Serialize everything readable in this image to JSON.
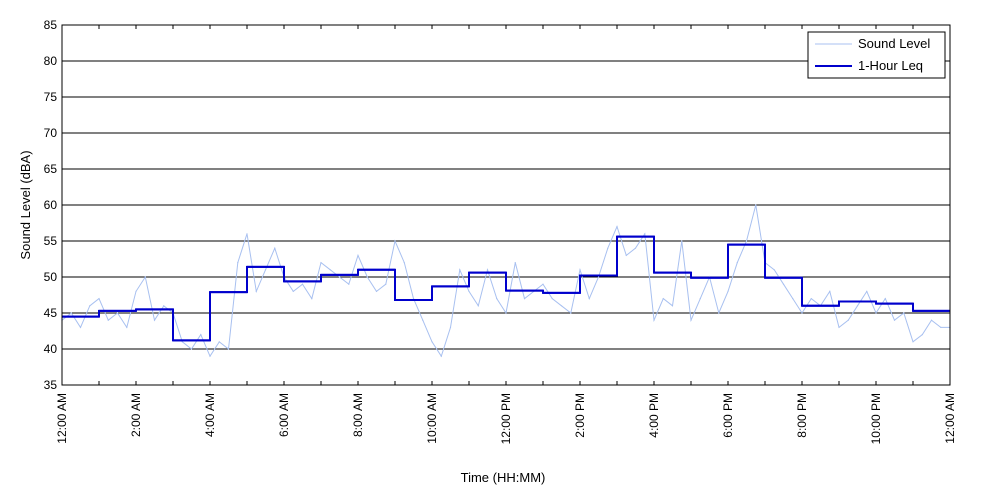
{
  "chart_data": {
    "type": "line",
    "xlabel": "Time (HH:MM)",
    "ylabel": "Sound Level (dBA)",
    "xlim": [
      0,
      24
    ],
    "ylim": [
      35,
      85
    ],
    "y_ticks": [
      35,
      40,
      45,
      50,
      55,
      60,
      65,
      70,
      75,
      80,
      85
    ],
    "x_ticks": [
      0,
      1,
      2,
      3,
      4,
      5,
      6,
      7,
      8,
      9,
      10,
      11,
      12,
      13,
      14,
      15,
      16,
      17,
      18,
      19,
      20,
      21,
      22,
      23,
      24
    ],
    "x_tick_labels": [
      {
        "hour": 0,
        "label": "12:00 AM"
      },
      {
        "hour": 2,
        "label": "2:00 AM"
      },
      {
        "hour": 4,
        "label": "4:00 AM"
      },
      {
        "hour": 6,
        "label": "6:00 AM"
      },
      {
        "hour": 8,
        "label": "8:00 AM"
      },
      {
        "hour": 10,
        "label": "10:00 AM"
      },
      {
        "hour": 12,
        "label": "12:00 PM"
      },
      {
        "hour": 14,
        "label": "2:00 PM"
      },
      {
        "hour": 16,
        "label": "4:00 PM"
      },
      {
        "hour": 18,
        "label": "6:00 PM"
      },
      {
        "hour": 20,
        "label": "8:00 PM"
      },
      {
        "hour": 22,
        "label": "10:00 PM"
      },
      {
        "hour": 24,
        "label": "12:00 AM"
      }
    ],
    "grid": "horizontal",
    "legend_position": "top-right",
    "series": [
      {
        "name": "Sound Level",
        "color": "#a8c0f0",
        "x": [
          0,
          0.25,
          0.5,
          0.75,
          1,
          1.25,
          1.5,
          1.75,
          2,
          2.25,
          2.5,
          2.75,
          3,
          3.25,
          3.5,
          3.75,
          4,
          4.25,
          4.5,
          4.75,
          5,
          5.25,
          5.5,
          5.75,
          6,
          6.25,
          6.5,
          6.75,
          7,
          7.25,
          7.5,
          7.75,
          8,
          8.25,
          8.5,
          8.75,
          9,
          9.25,
          9.5,
          9.75,
          10,
          10.25,
          10.5,
          10.75,
          11,
          11.25,
          11.5,
          11.75,
          12,
          12.25,
          12.5,
          12.75,
          13,
          13.25,
          13.5,
          13.75,
          14,
          14.25,
          14.5,
          14.75,
          15,
          15.25,
          15.5,
          15.75,
          16,
          16.25,
          16.5,
          16.75,
          17,
          17.25,
          17.5,
          17.75,
          18,
          18.25,
          18.5,
          18.75,
          19,
          19.25,
          19.5,
          19.75,
          20,
          20.25,
          20.5,
          20.75,
          21,
          21.25,
          21.5,
          21.75,
          22,
          22.25,
          22.5,
          22.75,
          23,
          23.25,
          23.5,
          23.75,
          24
        ],
        "values": [
          44,
          45,
          43,
          46,
          47,
          44,
          45,
          43,
          48,
          50,
          44,
          46,
          45,
          41,
          40,
          42,
          39,
          41,
          40,
          52,
          56,
          48,
          51,
          54,
          50,
          48,
          49,
          47,
          52,
          51,
          50,
          49,
          53,
          50,
          48,
          49,
          55,
          52,
          47,
          44,
          41,
          39,
          43,
          51,
          48,
          46,
          51,
          47,
          45,
          52,
          47,
          48,
          49,
          47,
          46,
          45,
          51,
          47,
          50,
          54,
          57,
          53,
          54,
          56,
          44,
          47,
          46,
          55,
          44,
          47,
          50,
          45,
          48,
          52,
          55,
          60,
          52,
          51,
          49,
          47,
          45,
          47,
          46,
          48,
          43,
          44,
          46,
          48,
          45,
          47,
          44,
          45,
          41,
          42,
          44,
          43,
          43
        ]
      },
      {
        "name": "1-Hour Leq",
        "color": "#0000cc",
        "step": "post",
        "x": [
          0,
          1,
          2,
          3,
          4,
          5,
          6,
          7,
          8,
          9,
          10,
          11,
          12,
          13,
          14,
          15,
          16,
          17,
          18,
          19,
          20,
          21,
          22,
          23
        ],
        "values": [
          44.5,
          45.3,
          45.5,
          41.2,
          47.9,
          51.4,
          49.4,
          50.3,
          51.0,
          46.8,
          48.7,
          50.6,
          48.1,
          47.8,
          50.2,
          55.6,
          50.6,
          49.9,
          54.5,
          49.9,
          46.0,
          46.6,
          46.3,
          45.3
        ]
      }
    ]
  }
}
